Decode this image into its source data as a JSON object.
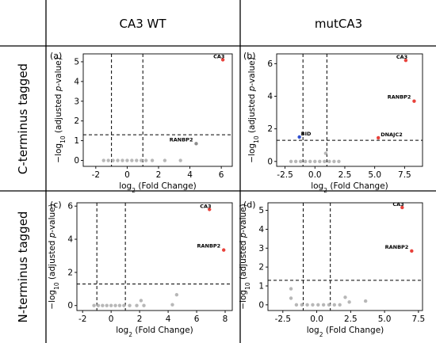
{
  "column_headers": [
    "CA3 WT",
    "mutCA3"
  ],
  "row_headers": [
    "C-terminus tagged",
    "N-terminus tagged"
  ],
  "chart_data": [
    {
      "type": "scatter",
      "panel": "(a)",
      "xlabel": "log2 (Fold Change)",
      "ylabel": "−log10 (adjusted p-value)",
      "xlim": [
        -2.8,
        6.7
      ],
      "ylim": [
        -0.3,
        5.4
      ],
      "xticks": [
        -2,
        0,
        2,
        4,
        6
      ],
      "yticks": [
        0,
        1,
        2,
        3,
        4,
        5
      ],
      "fc_threshold": [
        -1,
        1
      ],
      "p_threshold": 1.3,
      "points": [
        {
          "x": 6.1,
          "y": 5.1,
          "color": "#e8413a",
          "label": "CA3"
        },
        {
          "x": 4.4,
          "y": 0.85,
          "color": "#8c8c8c",
          "label": "RANBP2"
        },
        {
          "x": -1.5,
          "y": 0.0,
          "color": "#aaaaaa",
          "label": ""
        },
        {
          "x": -1.2,
          "y": 0.0,
          "color": "#aaaaaa",
          "label": ""
        },
        {
          "x": -0.9,
          "y": 0.0,
          "color": "#aaaaaa",
          "label": ""
        },
        {
          "x": -0.6,
          "y": 0.0,
          "color": "#aaaaaa",
          "label": ""
        },
        {
          "x": -0.3,
          "y": 0.0,
          "color": "#aaaaaa",
          "label": ""
        },
        {
          "x": 0.0,
          "y": 0.0,
          "color": "#aaaaaa",
          "label": ""
        },
        {
          "x": 0.3,
          "y": 0.0,
          "color": "#aaaaaa",
          "label": ""
        },
        {
          "x": 0.6,
          "y": 0.0,
          "color": "#aaaaaa",
          "label": ""
        },
        {
          "x": 0.9,
          "y": 0.0,
          "color": "#aaaaaa",
          "label": ""
        },
        {
          "x": 1.2,
          "y": 0.0,
          "color": "#aaaaaa",
          "label": ""
        },
        {
          "x": 1.6,
          "y": 0.0,
          "color": "#aaaaaa",
          "label": ""
        },
        {
          "x": 2.4,
          "y": 0.0,
          "color": "#aaaaaa",
          "label": ""
        },
        {
          "x": 3.4,
          "y": 0.0,
          "color": "#aaaaaa",
          "label": ""
        }
      ]
    },
    {
      "type": "scatter",
      "panel": "(b)",
      "xlabel": "log2 (Fold Change)",
      "ylabel": "−log10 (adjusted p-value)",
      "xlim": [
        -3.2,
        9.0
      ],
      "ylim": [
        -0.3,
        6.6
      ],
      "xticks": [
        -2.5,
        0.0,
        2.5,
        5.0,
        7.5
      ],
      "ytick_labels": [
        "0",
        "2",
        "4",
        "6"
      ],
      "yticks": [
        0,
        2,
        4,
        6
      ],
      "fc_threshold": [
        -1,
        1
      ],
      "p_threshold": 1.3,
      "points": [
        {
          "x": 7.6,
          "y": 6.2,
          "color": "#e8413a",
          "label": "CA3"
        },
        {
          "x": 8.3,
          "y": 3.7,
          "color": "#e8413a",
          "label": "RANBP2"
        },
        {
          "x": 5.3,
          "y": 1.45,
          "color": "#e8413a",
          "label": "DNAJC2"
        },
        {
          "x": -1.3,
          "y": 1.5,
          "color": "#2f4fcf",
          "label": "BID"
        },
        {
          "x": 0.9,
          "y": 0.5,
          "color": "#aaaaaa",
          "label": ""
        },
        {
          "x": -2.0,
          "y": 0.0,
          "color": "#aaaaaa",
          "label": ""
        },
        {
          "x": -1.6,
          "y": 0.0,
          "color": "#aaaaaa",
          "label": ""
        },
        {
          "x": -1.2,
          "y": 0.0,
          "color": "#aaaaaa",
          "label": ""
        },
        {
          "x": -0.8,
          "y": 0.0,
          "color": "#aaaaaa",
          "label": ""
        },
        {
          "x": -0.4,
          "y": 0.0,
          "color": "#aaaaaa",
          "label": ""
        },
        {
          "x": 0.0,
          "y": 0.0,
          "color": "#aaaaaa",
          "label": ""
        },
        {
          "x": 0.4,
          "y": 0.0,
          "color": "#aaaaaa",
          "label": ""
        },
        {
          "x": 0.8,
          "y": 0.0,
          "color": "#aaaaaa",
          "label": ""
        },
        {
          "x": 1.2,
          "y": 0.0,
          "color": "#aaaaaa",
          "label": ""
        },
        {
          "x": 1.6,
          "y": 0.0,
          "color": "#aaaaaa",
          "label": ""
        },
        {
          "x": 2.0,
          "y": 0.0,
          "color": "#aaaaaa",
          "label": ""
        }
      ]
    },
    {
      "type": "scatter",
      "panel": "(c)",
      "xlabel": "log2 (Fold Change)",
      "ylabel": "−log10 (adjusted p-value)",
      "xlim": [
        -2.4,
        8.5
      ],
      "ylim": [
        -0.3,
        6.2
      ],
      "xticks": [
        -2,
        0,
        2,
        4,
        6,
        8
      ],
      "yticks": [
        0,
        2,
        4,
        6
      ],
      "fc_threshold": [
        -1,
        1
      ],
      "p_threshold": 1.3,
      "points": [
        {
          "x": 6.9,
          "y": 5.8,
          "color": "#e8413a",
          "label": "CA3"
        },
        {
          "x": 7.9,
          "y": 3.35,
          "color": "#e8413a",
          "label": "RANBP2"
        },
        {
          "x": 4.6,
          "y": 0.65,
          "color": "#aaaaaa",
          "label": ""
        },
        {
          "x": 2.1,
          "y": 0.3,
          "color": "#aaaaaa",
          "label": ""
        },
        {
          "x": 4.3,
          "y": 0.05,
          "color": "#aaaaaa",
          "label": ""
        },
        {
          "x": -1.2,
          "y": 0.0,
          "color": "#aaaaaa",
          "label": ""
        },
        {
          "x": -0.9,
          "y": 0.0,
          "color": "#aaaaaa",
          "label": ""
        },
        {
          "x": -0.6,
          "y": 0.0,
          "color": "#aaaaaa",
          "label": ""
        },
        {
          "x": -0.3,
          "y": 0.0,
          "color": "#aaaaaa",
          "label": ""
        },
        {
          "x": 0.0,
          "y": 0.0,
          "color": "#aaaaaa",
          "label": ""
        },
        {
          "x": 0.3,
          "y": 0.0,
          "color": "#aaaaaa",
          "label": ""
        },
        {
          "x": 0.6,
          "y": 0.0,
          "color": "#aaaaaa",
          "label": ""
        },
        {
          "x": 0.9,
          "y": 0.0,
          "color": "#aaaaaa",
          "label": ""
        },
        {
          "x": 1.3,
          "y": 0.0,
          "color": "#aaaaaa",
          "label": ""
        },
        {
          "x": 1.8,
          "y": 0.0,
          "color": "#aaaaaa",
          "label": ""
        },
        {
          "x": 2.3,
          "y": 0.0,
          "color": "#aaaaaa",
          "label": ""
        }
      ]
    },
    {
      "type": "scatter",
      "panel": "(d)",
      "xlabel": "log2 (Fold Change)",
      "ylabel": "−log10 (adjusted p-value)",
      "xlim": [
        -3.6,
        7.8
      ],
      "ylim": [
        -0.3,
        5.4
      ],
      "xticks": [
        -2.5,
        0.0,
        2.5,
        5.0,
        7.5
      ],
      "yticks": [
        0,
        1,
        2,
        3,
        4,
        5
      ],
      "fc_threshold": [
        -1,
        1
      ],
      "p_threshold": 1.3,
      "points": [
        {
          "x": 6.3,
          "y": 5.15,
          "color": "#e8413a",
          "label": "CA3"
        },
        {
          "x": 7.0,
          "y": 2.85,
          "color": "#e8413a",
          "label": "RANBP2"
        },
        {
          "x": -1.9,
          "y": 0.85,
          "color": "#aaaaaa",
          "label": ""
        },
        {
          "x": -1.9,
          "y": 0.35,
          "color": "#aaaaaa",
          "label": ""
        },
        {
          "x": 3.6,
          "y": 0.2,
          "color": "#aaaaaa",
          "label": ""
        },
        {
          "x": 2.1,
          "y": 0.4,
          "color": "#aaaaaa",
          "label": ""
        },
        {
          "x": 2.4,
          "y": 0.15,
          "color": "#aaaaaa",
          "label": ""
        },
        {
          "x": -1.5,
          "y": 0.0,
          "color": "#aaaaaa",
          "label": ""
        },
        {
          "x": -1.1,
          "y": 0.0,
          "color": "#aaaaaa",
          "label": ""
        },
        {
          "x": -0.7,
          "y": 0.0,
          "color": "#aaaaaa",
          "label": ""
        },
        {
          "x": -0.3,
          "y": 0.0,
          "color": "#aaaaaa",
          "label": ""
        },
        {
          "x": 0.1,
          "y": 0.0,
          "color": "#aaaaaa",
          "label": ""
        },
        {
          "x": 0.5,
          "y": 0.0,
          "color": "#aaaaaa",
          "label": ""
        },
        {
          "x": 0.9,
          "y": 0.0,
          "color": "#aaaaaa",
          "label": ""
        },
        {
          "x": 1.3,
          "y": 0.0,
          "color": "#aaaaaa",
          "label": ""
        },
        {
          "x": 1.7,
          "y": 0.0,
          "color": "#aaaaaa",
          "label": ""
        }
      ]
    }
  ]
}
